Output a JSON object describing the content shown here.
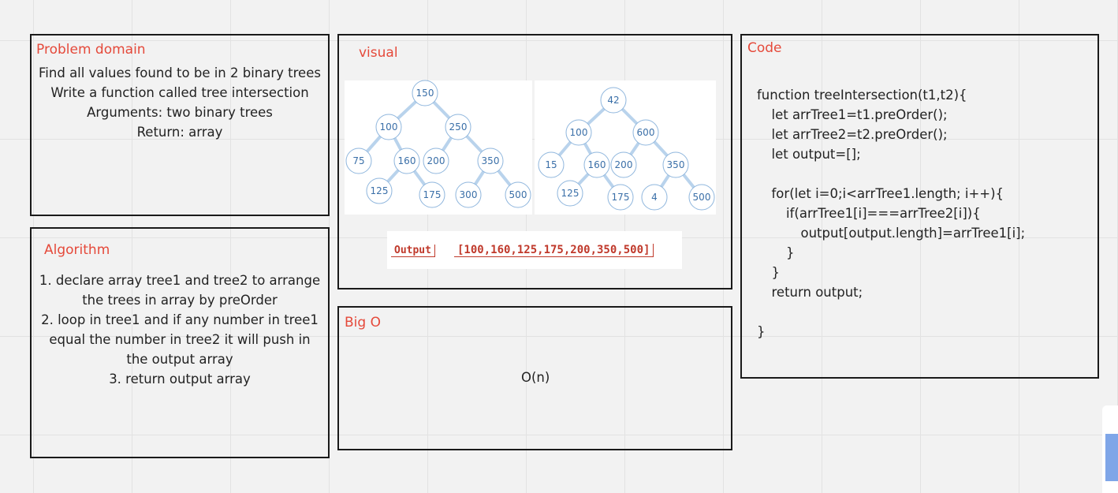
{
  "problem_domain": {
    "title": "Problem domain",
    "lines": [
      "Find all values found to be in 2 binary trees",
      "Write a function called tree intersection",
      "Arguments: two binary trees",
      "Return: array"
    ]
  },
  "algorithm": {
    "title": "Algorithm",
    "lines": [
      "1. declare array tree1 and tree2 to arrange",
      "the trees in array by preOrder",
      "2. loop in tree1 and if any number in tree1",
      "equal the number in tree2 it will push in",
      "the output array",
      "3. return output array"
    ]
  },
  "visual": {
    "title": "visual",
    "tree1": [
      "150",
      "100",
      "250",
      "75",
      "160",
      "200",
      "350",
      "125",
      "175",
      "300",
      "500"
    ],
    "tree2": [
      "42",
      "100",
      "600",
      "15",
      "160",
      "200",
      "350",
      "125",
      "175",
      "4",
      "500"
    ],
    "output_label": "Output",
    "output_value": "[100,160,125,175,200,350,500]"
  },
  "big_o": {
    "title": "Big O",
    "text": "O(n)"
  },
  "code": {
    "title": "Code",
    "lines": [
      "function treeIntersection(t1,t2){",
      "let arrTree1=t1.preOrder();",
      "let arrTree2=t2.preOrder();",
      "let output=[];",
      "for(let i=0;i<arrTree1.length; i++){",
      "if(arrTree1[i]===arrTree2[i]){",
      "output[output.length]=arrTree1[i];",
      "}",
      "}",
      "return output;",
      "}"
    ]
  }
}
